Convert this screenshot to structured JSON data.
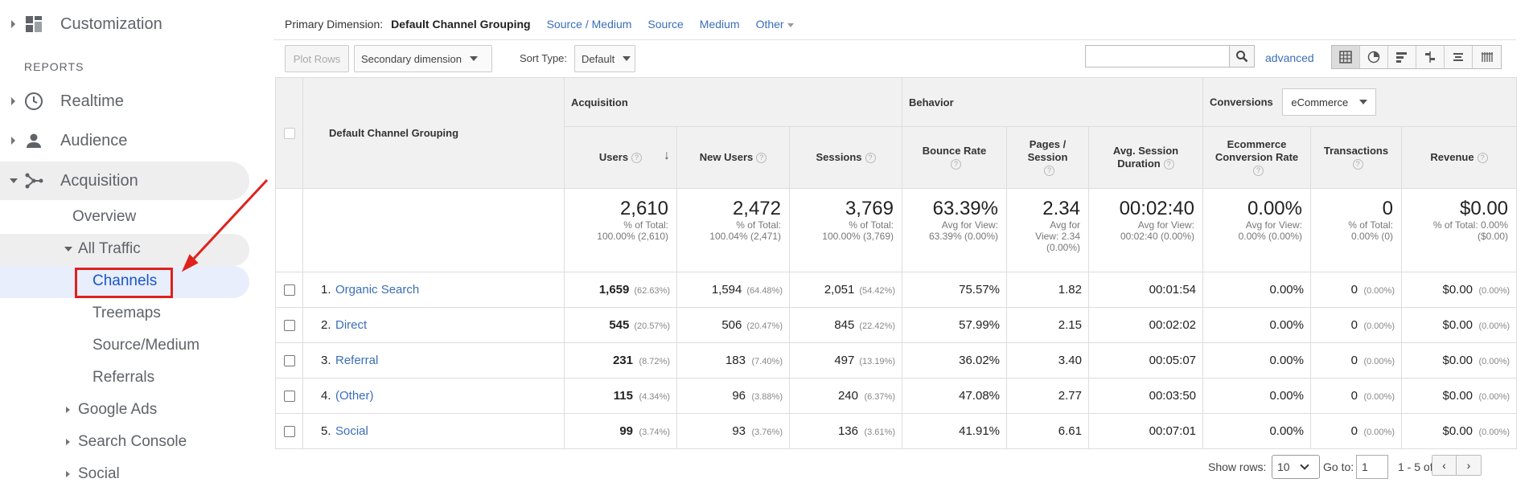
{
  "sidebar": {
    "customization": "Customization",
    "reports_heading": "REPORTS",
    "realtime": "Realtime",
    "audience": "Audience",
    "acquisition": "Acquisition",
    "overview": "Overview",
    "all_traffic": "All Traffic",
    "channels": "Channels",
    "treemaps": "Treemaps",
    "source_medium": "Source/Medium",
    "referrals": "Referrals",
    "google_ads": "Google Ads",
    "search_console": "Search Console",
    "social": "Social"
  },
  "dimension_bar": {
    "label": "Primary Dimension:",
    "active": "Default Channel Grouping",
    "options": [
      "Source / Medium",
      "Source",
      "Medium"
    ],
    "other": "Other"
  },
  "toolbar": {
    "plot_rows": "Plot Rows",
    "secondary_dimension": "Secondary dimension",
    "sort_type_label": "Sort Type:",
    "sort_type_value": "Default",
    "search_placeholder": "",
    "advanced": "advanced"
  },
  "table": {
    "dimension_header": "Default Channel Grouping",
    "groups": {
      "acquisition": "Acquisition",
      "behavior": "Behavior",
      "conversions": "Conversions",
      "conversions_select": "eCommerce"
    },
    "columns": {
      "users": "Users",
      "new_users": "New Users",
      "sessions": "Sessions",
      "bounce_rate": "Bounce Rate",
      "pages_session": "Pages / Session",
      "avg_session_duration": "Avg. Session Duration",
      "ecommerce_conversion_rate": "Ecommerce Conversion Rate",
      "transactions": "Transactions",
      "revenue": "Revenue"
    },
    "totals": {
      "users": {
        "value": "2,610",
        "sub1": "% of Total:",
        "sub2": "100.00% (2,610)"
      },
      "new_users": {
        "value": "2,472",
        "sub1": "% of Total:",
        "sub2": "100.04% (2,471)"
      },
      "sessions": {
        "value": "3,769",
        "sub1": "% of Total:",
        "sub2": "100.00% (3,769)"
      },
      "bounce_rate": {
        "value": "63.39%",
        "sub1": "Avg for View:",
        "sub2": "63.39% (0.00%)"
      },
      "pages_session": {
        "value": "2.34",
        "sub1": "Avg for",
        "sub2": "View: 2.34",
        "sub3": "(0.00%)"
      },
      "avg_session_duration": {
        "value": "00:02:40",
        "sub1": "Avg for View:",
        "sub2": "00:02:40 (0.00%)"
      },
      "ecommerce_conversion_rate": {
        "value": "0.00%",
        "sub1": "Avg for View:",
        "sub2": "0.00% (0.00%)"
      },
      "transactions": {
        "value": "0",
        "sub1": "% of Total:",
        "sub2": "0.00% (0)"
      },
      "revenue": {
        "value": "$0.00",
        "sub1": "% of Total: 0.00%",
        "sub2": "($0.00)"
      }
    },
    "rows": [
      {
        "num": "1.",
        "name": "Organic Search",
        "users": "1,659",
        "users_pct": "(62.63%)",
        "new_users": "1,594",
        "new_users_pct": "(64.48%)",
        "sessions": "2,051",
        "sessions_pct": "(54.42%)",
        "bounce_rate": "75.57%",
        "pages_session": "1.82",
        "duration": "00:01:54",
        "conv_rate": "0.00%",
        "transactions": "0",
        "transactions_pct": "(0.00%)",
        "revenue": "$0.00",
        "revenue_pct": "(0.00%)"
      },
      {
        "num": "2.",
        "name": "Direct",
        "users": "545",
        "users_pct": "(20.57%)",
        "new_users": "506",
        "new_users_pct": "(20.47%)",
        "sessions": "845",
        "sessions_pct": "(22.42%)",
        "bounce_rate": "57.99%",
        "pages_session": "2.15",
        "duration": "00:02:02",
        "conv_rate": "0.00%",
        "transactions": "0",
        "transactions_pct": "(0.00%)",
        "revenue": "$0.00",
        "revenue_pct": "(0.00%)"
      },
      {
        "num": "3.",
        "name": "Referral",
        "users": "231",
        "users_pct": "(8.72%)",
        "new_users": "183",
        "new_users_pct": "(7.40%)",
        "sessions": "497",
        "sessions_pct": "(13.19%)",
        "bounce_rate": "36.02%",
        "pages_session": "3.40",
        "duration": "00:05:07",
        "conv_rate": "0.00%",
        "transactions": "0",
        "transactions_pct": "(0.00%)",
        "revenue": "$0.00",
        "revenue_pct": "(0.00%)"
      },
      {
        "num": "4.",
        "name": "(Other)",
        "users": "115",
        "users_pct": "(4.34%)",
        "new_users": "96",
        "new_users_pct": "(3.88%)",
        "sessions": "240",
        "sessions_pct": "(6.37%)",
        "bounce_rate": "47.08%",
        "pages_session": "2.77",
        "duration": "00:03:50",
        "conv_rate": "0.00%",
        "transactions": "0",
        "transactions_pct": "(0.00%)",
        "revenue": "$0.00",
        "revenue_pct": "(0.00%)"
      },
      {
        "num": "5.",
        "name": "Social",
        "users": "99",
        "users_pct": "(3.74%)",
        "new_users": "93",
        "new_users_pct": "(3.76%)",
        "sessions": "136",
        "sessions_pct": "(3.61%)",
        "bounce_rate": "41.91%",
        "pages_session": "6.61",
        "duration": "00:07:01",
        "conv_rate": "0.00%",
        "transactions": "0",
        "transactions_pct": "(0.00%)",
        "revenue": "$0.00",
        "revenue_pct": "(0.00%)"
      }
    ]
  },
  "footer": {
    "show_rows_label": "Show rows:",
    "show_rows_value": "10",
    "goto_label": "Go to:",
    "goto_value": "1",
    "range": "1 - 5 of 5"
  },
  "icons": {
    "help": "?",
    "sort_desc": "↓",
    "prev": "‹",
    "next": "›"
  },
  "colors": {
    "link": "#3b6eb8",
    "highlight_box": "#e0211c",
    "active_nav": "#e8eefc"
  }
}
